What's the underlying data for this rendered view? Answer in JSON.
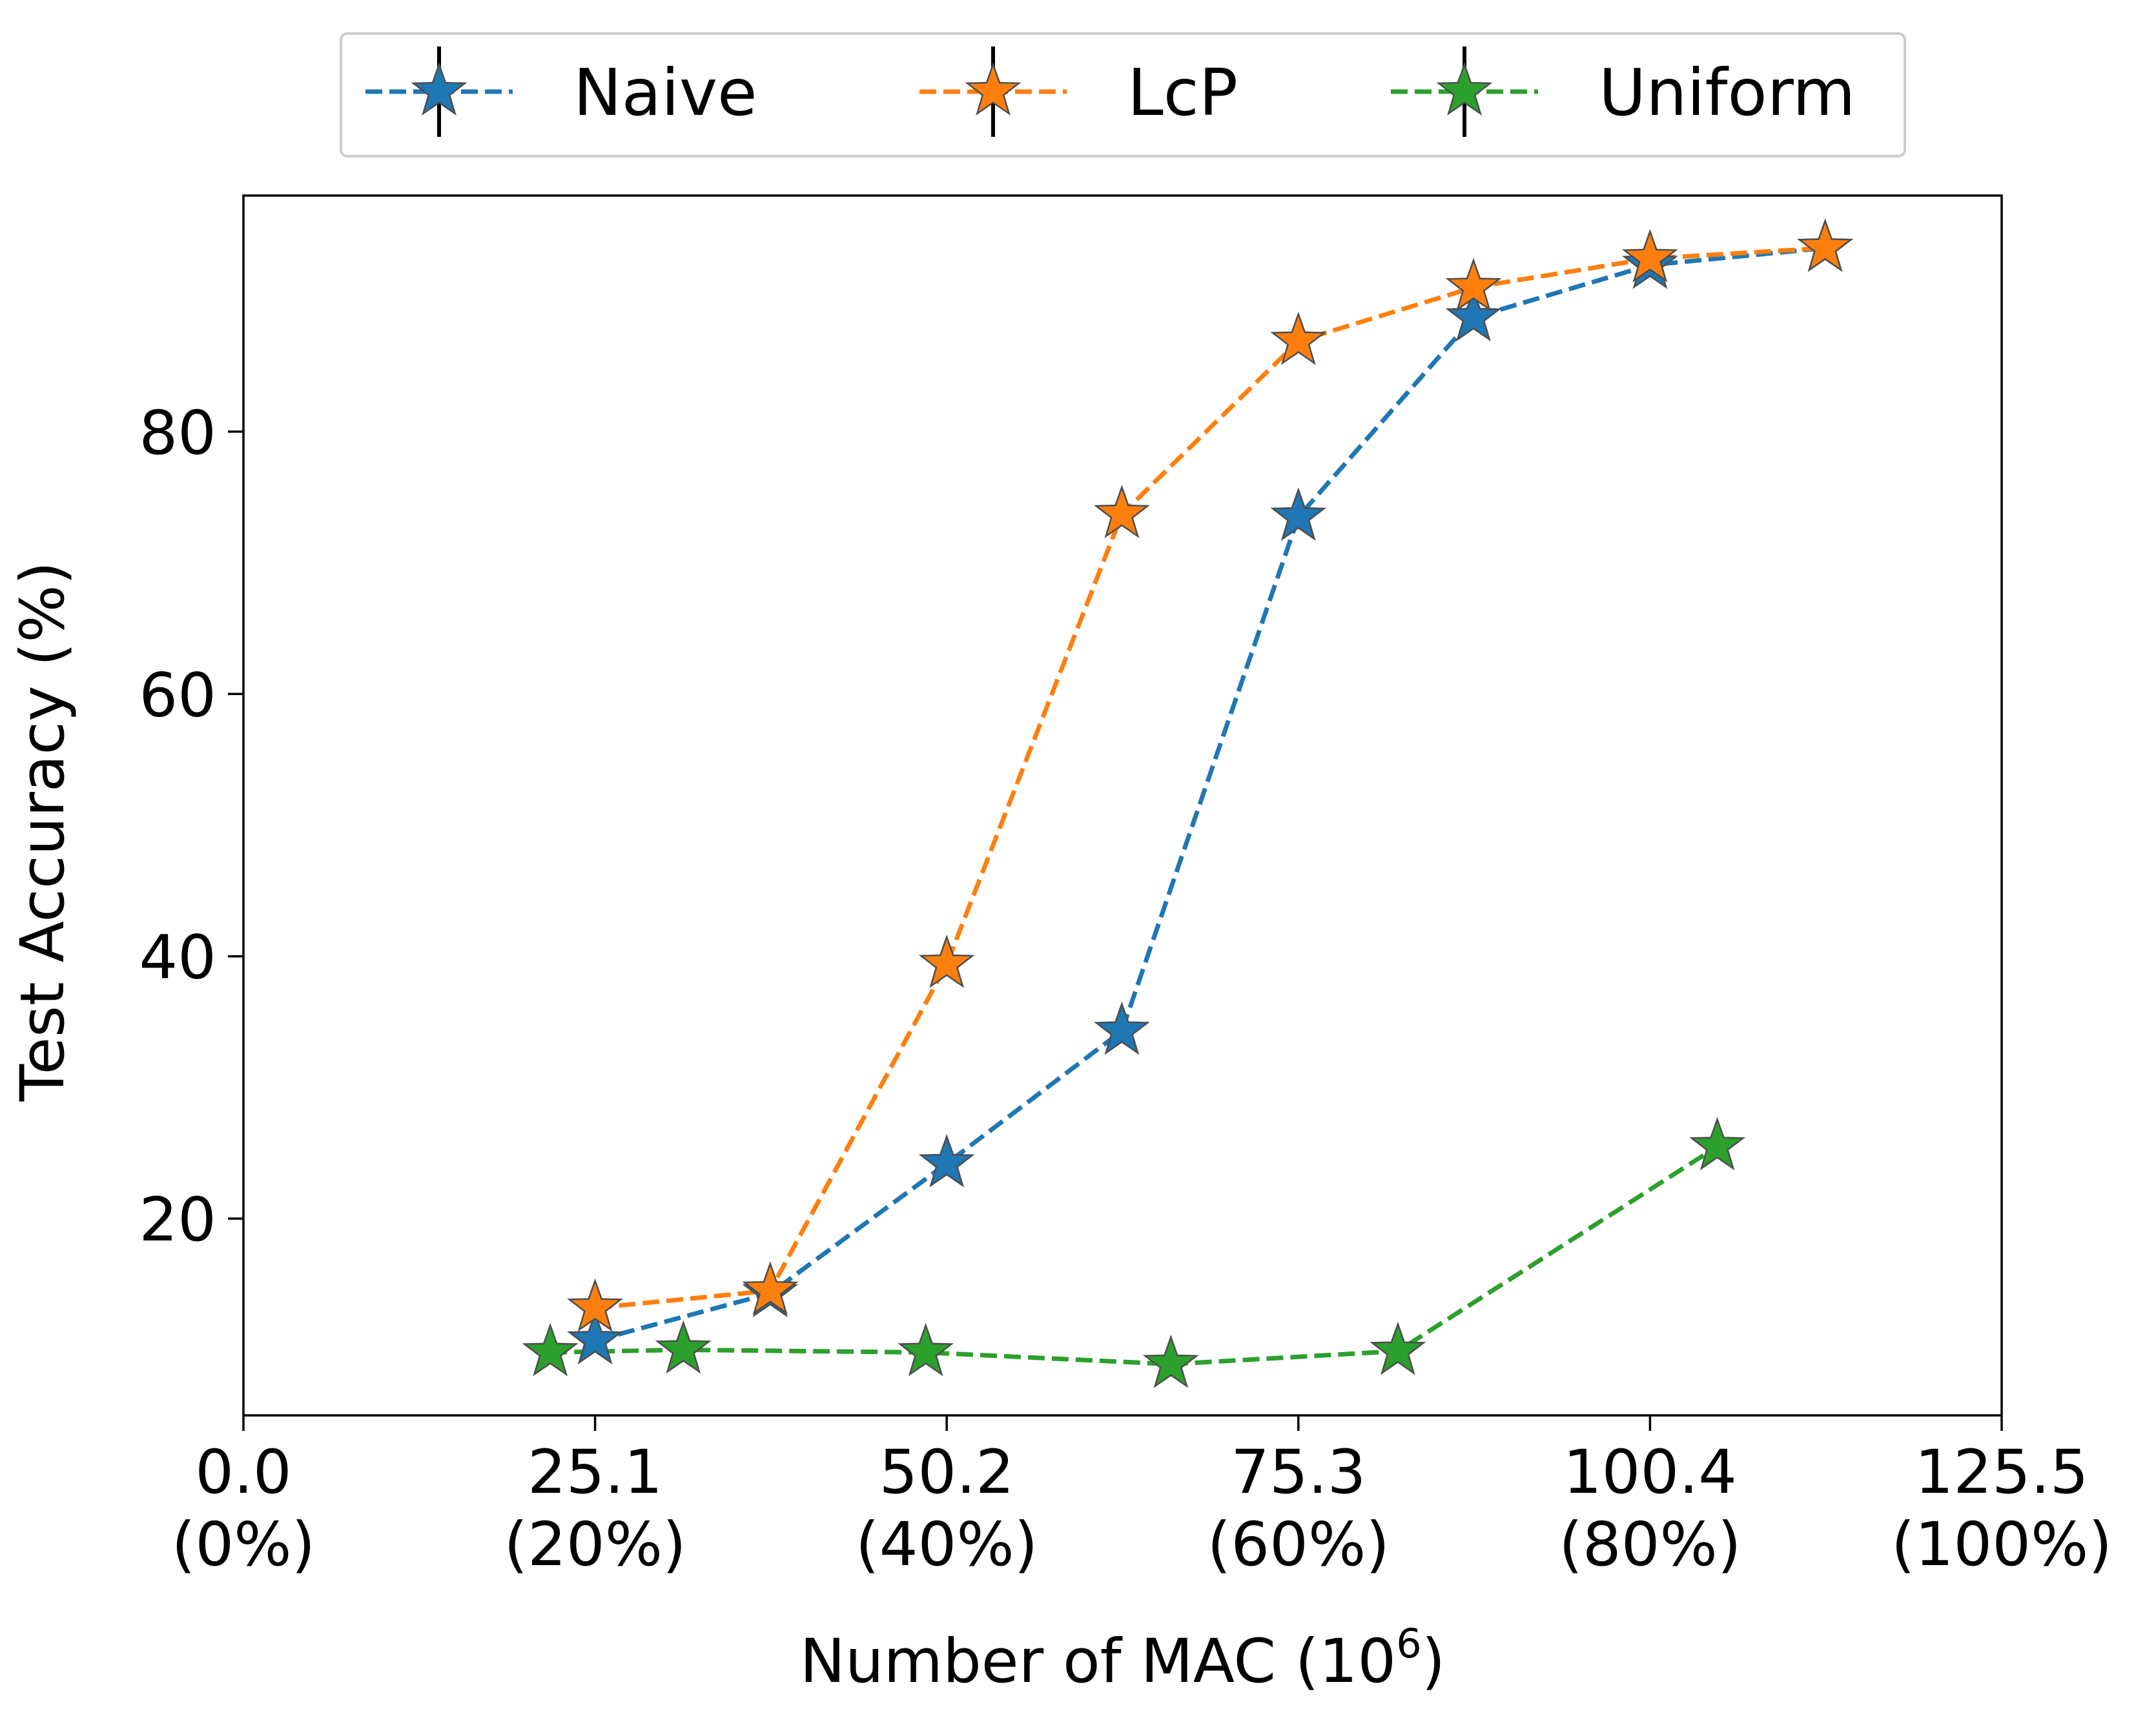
{
  "chart_data": {
    "type": "line",
    "title": "",
    "xlabel": "Number of MAC (10",
    "xlabel_sup": "6",
    "xlabel_suffix": ")",
    "ylabel": "Test Accuracy (%)",
    "xlim": [
      0,
      125.5
    ],
    "ylim": [
      5,
      98
    ],
    "grid": false,
    "legend_position": "top-center-outside",
    "x_ticks": [
      {
        "value": 0.0,
        "label": "0.0",
        "sublabel": "(0%)"
      },
      {
        "value": 25.1,
        "label": "25.1",
        "sublabel": "(20%)"
      },
      {
        "value": 50.2,
        "label": "50.2",
        "sublabel": "(40%)"
      },
      {
        "value": 75.3,
        "label": "75.3",
        "sublabel": "(60%)"
      },
      {
        "value": 100.4,
        "label": "100.4",
        "sublabel": "(80%)"
      },
      {
        "value": 125.5,
        "label": "125.5",
        "sublabel": "(100%)"
      }
    ],
    "y_ticks": [
      {
        "value": 20,
        "label": "20"
      },
      {
        "value": 40,
        "label": "40"
      },
      {
        "value": 60,
        "label": "60"
      },
      {
        "value": 80,
        "label": "80"
      }
    ],
    "series": [
      {
        "name": "Naive",
        "color": "#1f77b4",
        "x": [
          25.1,
          37.6,
          50.2,
          62.7,
          75.3,
          87.8,
          100.4,
          112.9
        ],
        "y": [
          10.7,
          14.3,
          24.2,
          34.3,
          73.5,
          88.7,
          92.7,
          94.0
        ]
      },
      {
        "name": "LcP",
        "color": "#ff7f0e",
        "x": [
          25.1,
          37.6,
          50.2,
          62.7,
          75.3,
          87.8,
          100.4,
          112.9
        ],
        "y": [
          13.2,
          14.5,
          39.4,
          73.7,
          86.9,
          91.0,
          93.2,
          94.0
        ]
      },
      {
        "name": "Uniform",
        "color": "#2ca02c",
        "x": [
          21.9,
          31.4,
          48.7,
          66.2,
          82.4,
          105.2
        ],
        "y": [
          9.8,
          10.0,
          9.8,
          8.9,
          9.9,
          25.5
        ]
      }
    ]
  }
}
